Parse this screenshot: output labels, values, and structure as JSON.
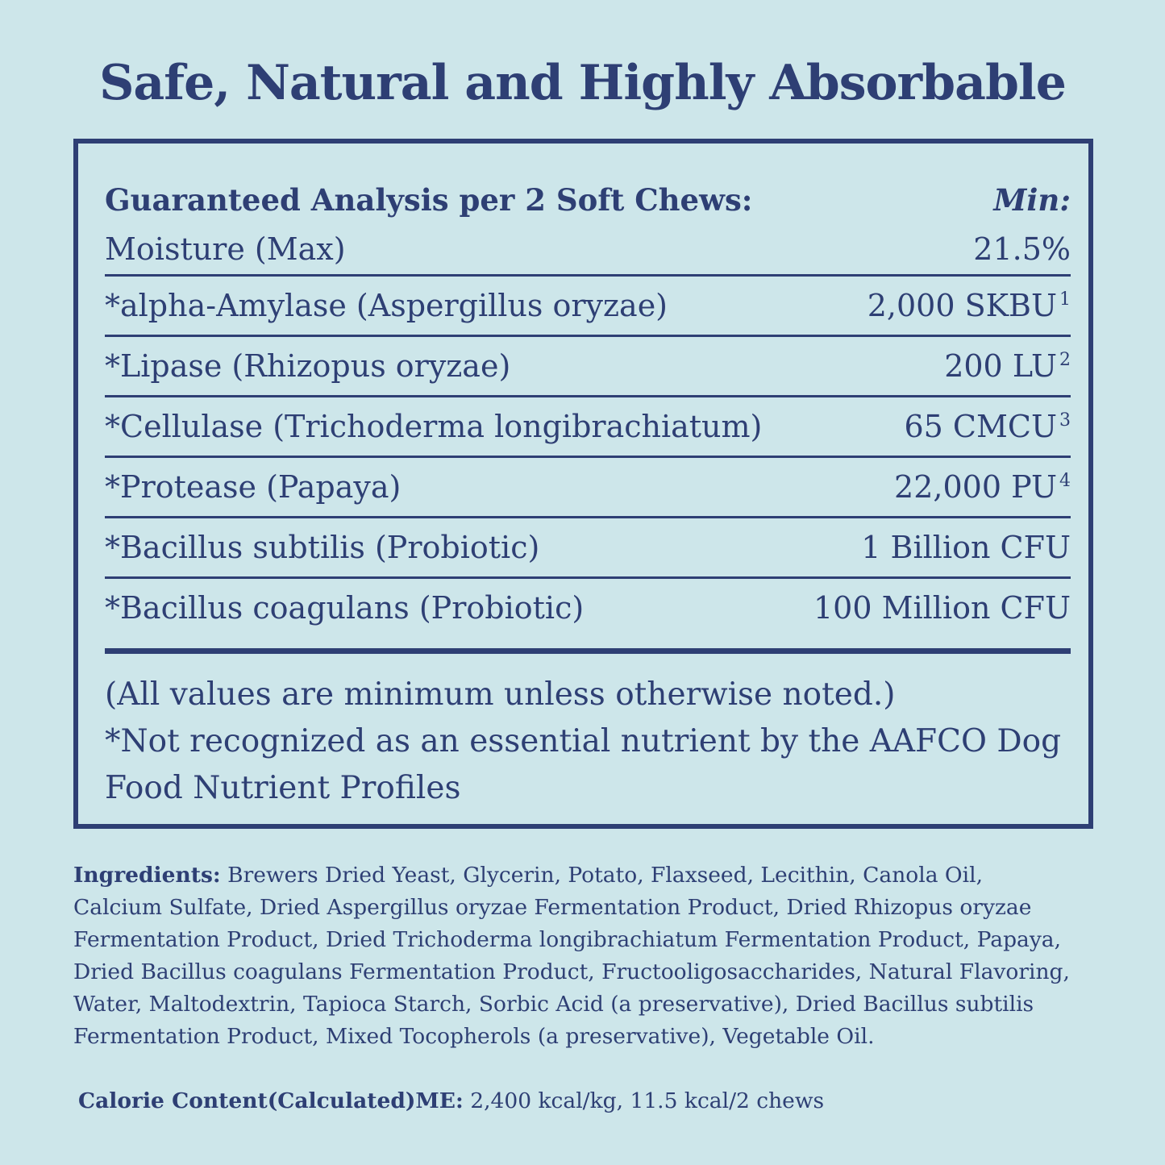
{
  "title": "Safe, Natural and Highly Absorbable",
  "analysis": {
    "heading": "Guaranteed Analysis per 2 Soft Chews:",
    "min_label": "Min:",
    "rows": [
      {
        "name": "Moisture (Max)",
        "value": "21.5%",
        "note": ""
      },
      {
        "name": "*alpha-Amylase (Aspergillus oryzae)",
        "value": "2,000 SKBU",
        "note": "1"
      },
      {
        "name": "*Lipase (Rhizopus oryzae)",
        "value": "200 LU",
        "note": "2"
      },
      {
        "name": "*Cellulase (Trichoderma longibrachiatum)",
        "value": "65 CMCU",
        "note": "3"
      },
      {
        "name": "*Protease (Papaya)",
        "value": "22,000 PU",
        "note": "4"
      },
      {
        "name": "*Bacillus subtilis (Probiotic)",
        "value": "1 Billion CFU",
        "note": ""
      },
      {
        "name": "*Bacillus coagulans (Probiotic)",
        "value": "100 Million CFU",
        "note": ""
      }
    ],
    "notes": [
      "(All values are minimum unless otherwise noted.)",
      "*Not recognized as an essential nutrient by the AAFCO Dog Food Nutrient Profiles"
    ]
  },
  "ingredients": {
    "label": "Ingredients:",
    "text": "Brewers Dried Yeast, Glycerin, Potato, Flaxseed, Lecithin, Canola Oil, Calcium Sulfate, Dried Aspergillus oryzae Fermentation Product, Dried Rhizopus oryzae Fermentation Product, Dried Trichoderma longibrachiatum Fermentation Product, Papaya, Dried Bacillus coagulans Fermentation Product, Fructooligosaccharides, Natural Flavoring, Water, Maltodextrin, Tapioca Starch, Sorbic Acid (a preservative), Dried Bacillus subtilis Fermentation Product, Mixed Tocopherols (a preservative), Vegetable Oil."
  },
  "calorie": {
    "label": "Calorie Content(Calculated)ME:",
    "text": "2,400 kcal/kg, 11.5 kcal/2 chews"
  },
  "colors": {
    "background": "#cde6ea",
    "text": "#2e3f74"
  }
}
